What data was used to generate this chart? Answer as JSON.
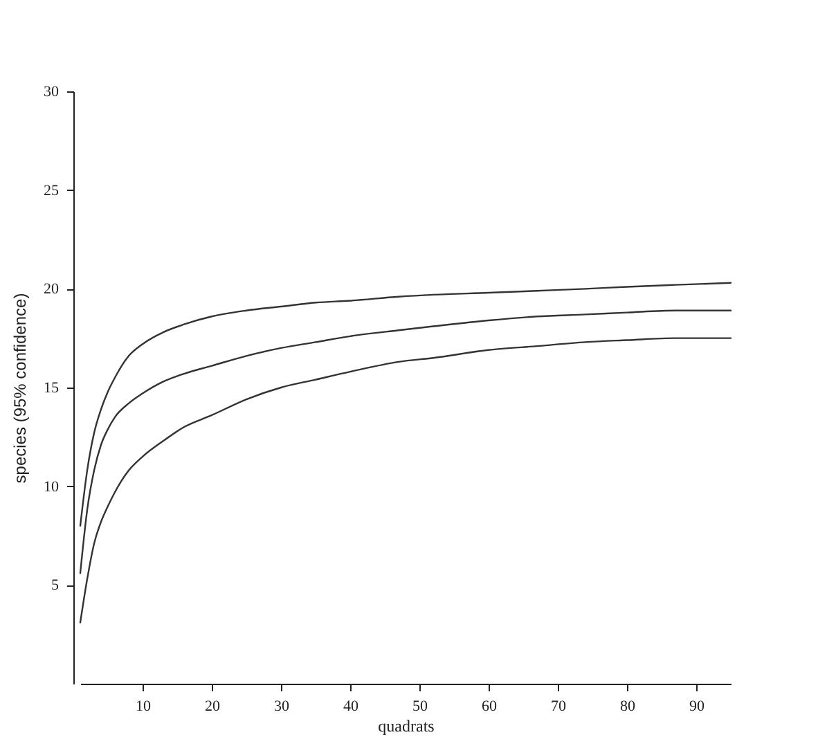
{
  "chart_data": {
    "type": "line",
    "xlabel": "quadrats",
    "ylabel": "species (95% confidence)",
    "x": [
      1,
      2,
      3,
      4,
      5,
      6,
      8,
      10,
      13,
      16,
      20,
      25,
      30,
      35,
      40,
      47,
      52,
      60,
      67,
      74,
      80,
      87,
      95
    ],
    "series": [
      {
        "color": "#333333",
        "values": [
          8.0,
          10.8,
          12.7,
          13.9,
          14.8,
          15.5,
          16.6,
          17.2,
          17.8,
          18.2,
          18.6,
          18.9,
          19.1,
          19.3,
          19.4,
          19.6,
          19.7,
          19.8,
          19.9,
          20.0,
          20.1,
          20.2,
          20.3
        ]
      },
      {
        "color": "#333333",
        "values": [
          5.6,
          8.8,
          10.8,
          12.1,
          12.9,
          13.5,
          14.2,
          14.7,
          15.3,
          15.7,
          16.1,
          16.6,
          17.0,
          17.3,
          17.6,
          17.9,
          18.1,
          18.4,
          18.6,
          18.7,
          18.8,
          18.9,
          18.9
        ]
      },
      {
        "color": "#333333",
        "values": [
          3.1,
          5.3,
          7.1,
          8.2,
          9.0,
          9.7,
          10.8,
          11.5,
          12.3,
          13.0,
          13.6,
          14.4,
          15.0,
          15.4,
          15.8,
          16.3,
          16.5,
          16.9,
          17.1,
          17.3,
          17.4,
          17.5,
          17.5
        ]
      }
    ],
    "xlim": [
      1,
      95
    ],
    "ylim": [
      0,
      30
    ],
    "xticks": [
      10,
      20,
      30,
      40,
      50,
      60,
      70,
      80,
      90
    ],
    "yticks": [
      5,
      10,
      15,
      20,
      25,
      30
    ],
    "line_style": "solid"
  }
}
